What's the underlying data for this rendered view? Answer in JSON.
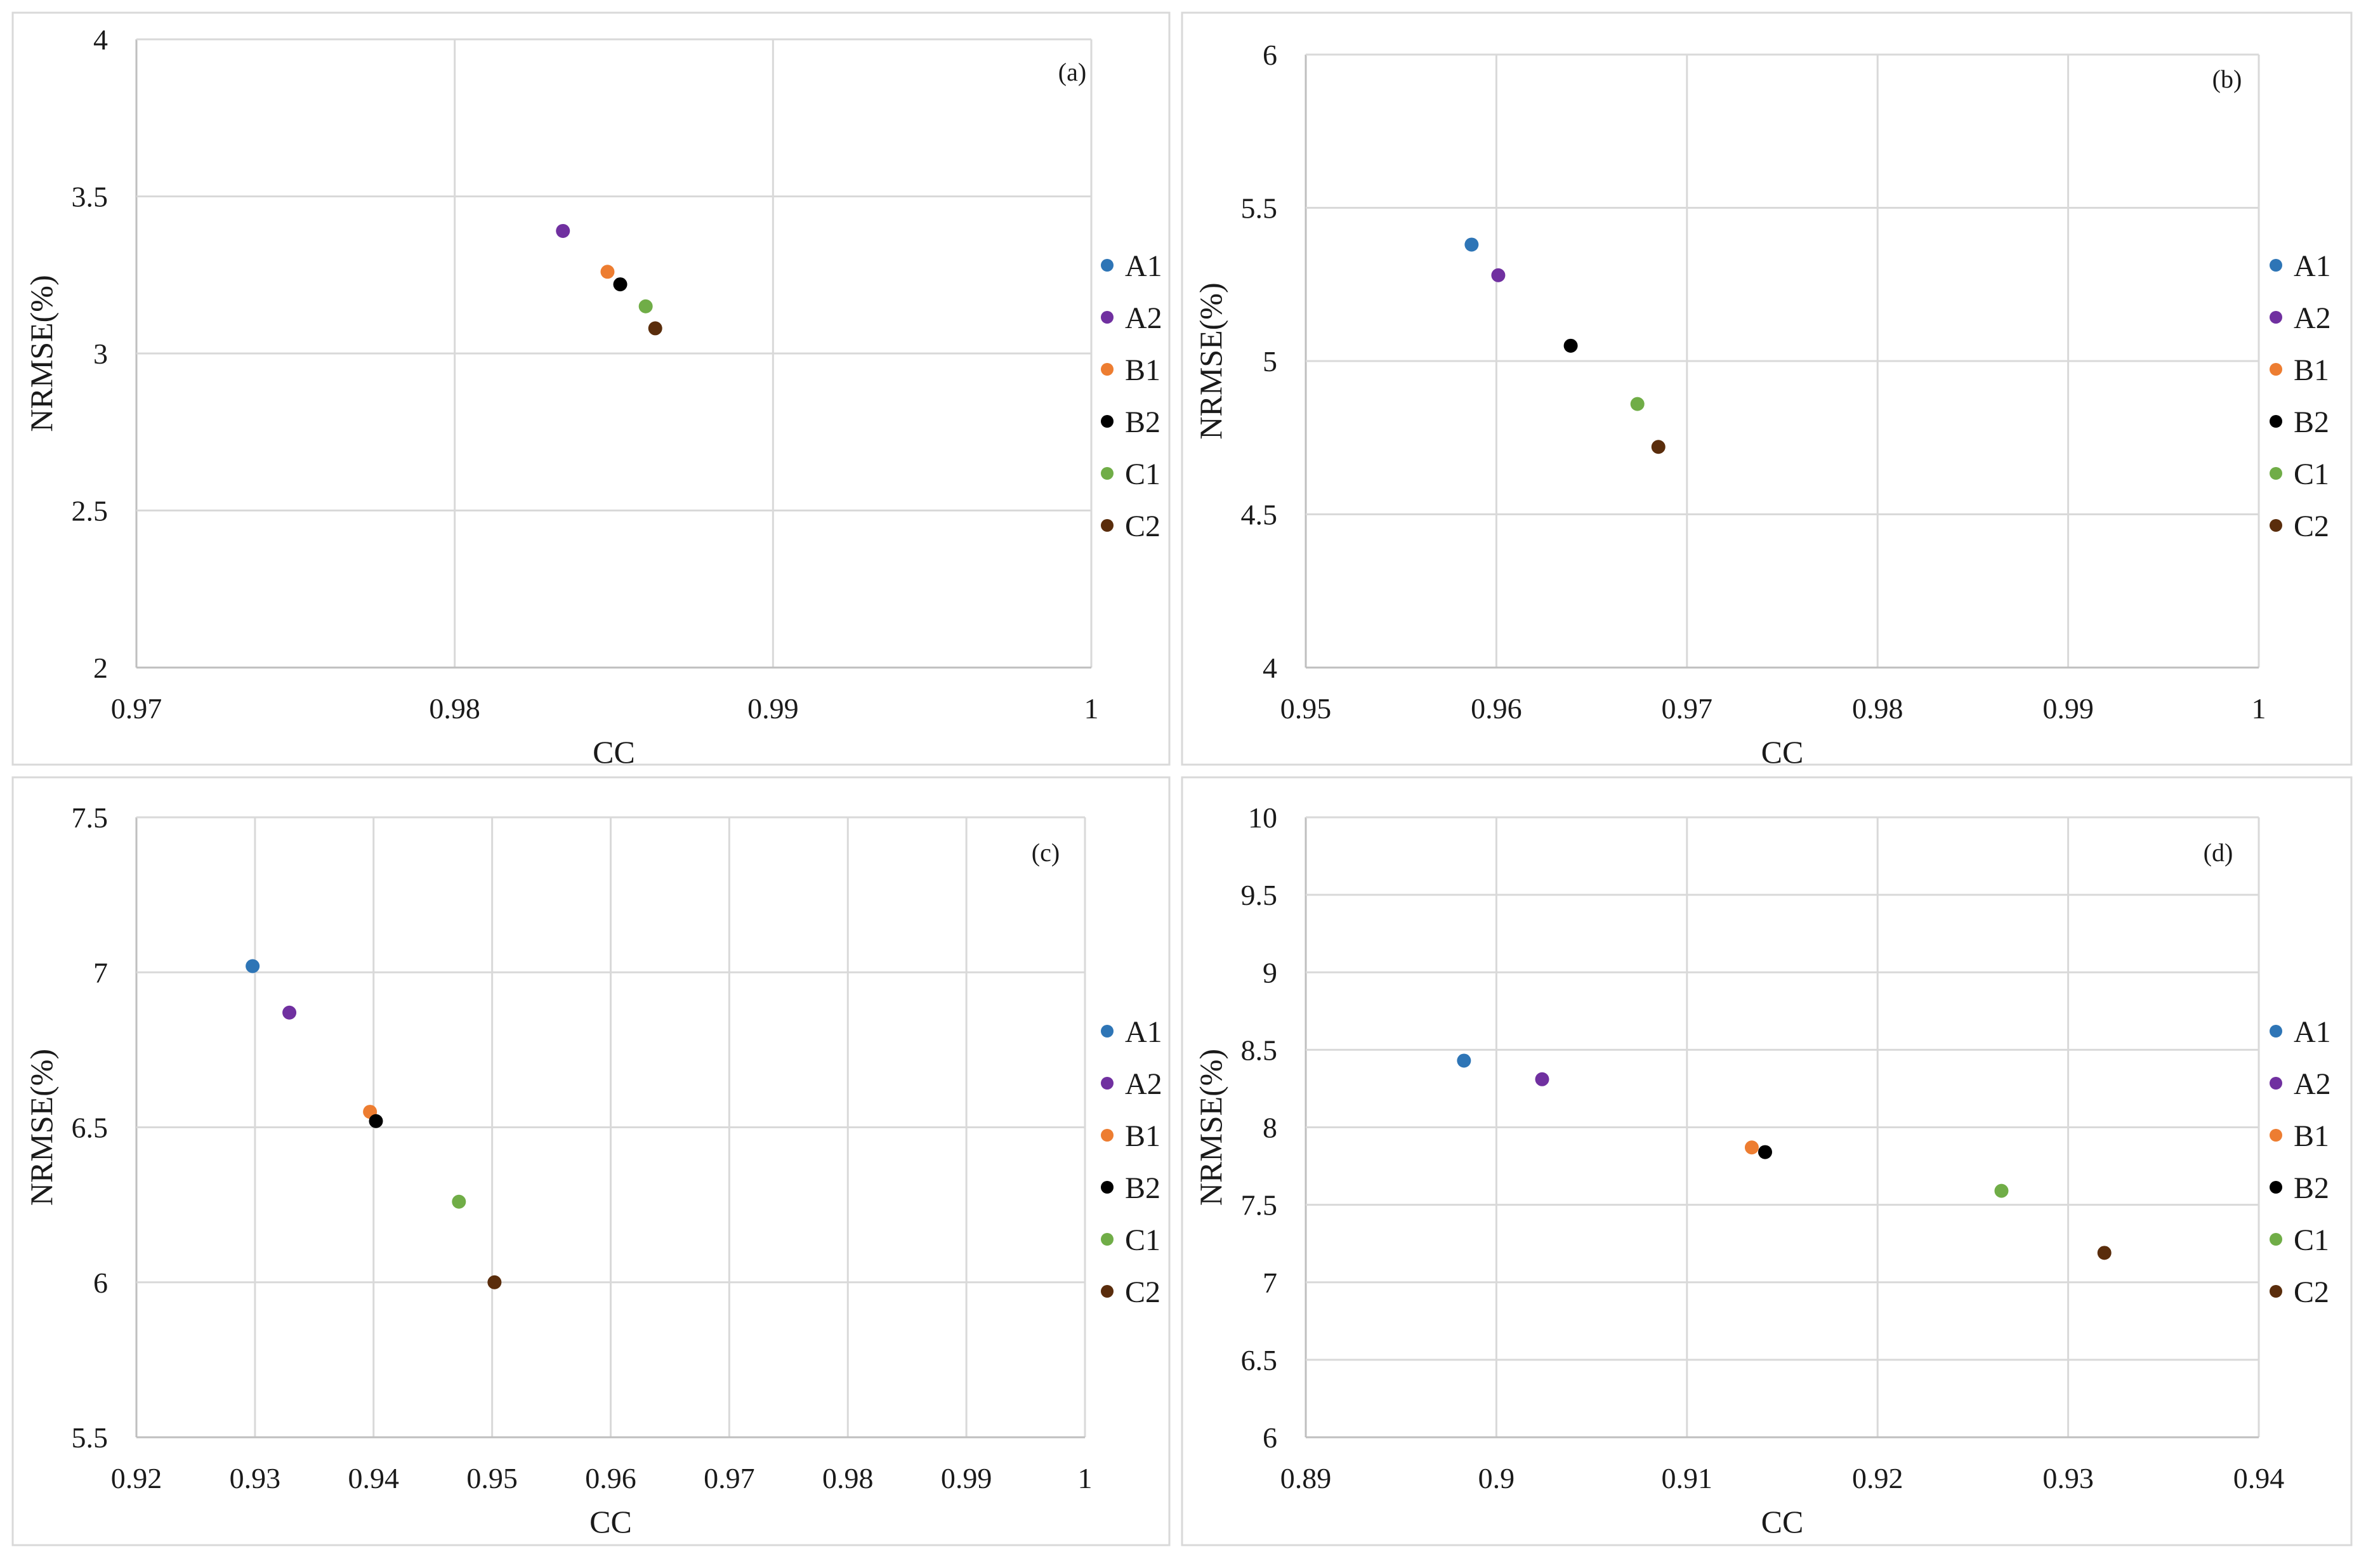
{
  "chart_data": [
    {
      "type": "scatter",
      "panel_label": "(a)",
      "xlabel": "CC",
      "ylabel": "NRMSE(%)",
      "xlim": [
        0.97,
        1
      ],
      "ylim": [
        2,
        4
      ],
      "x_ticks": [
        "0.97",
        "0.98",
        "0.99",
        "1"
      ],
      "y_ticks": [
        "2",
        "2.5",
        "3",
        "3.5",
        "4"
      ],
      "grid": true,
      "legend": "right",
      "series": [
        {
          "name": "A1",
          "color": "#2e75b6",
          "x": null,
          "y": null
        },
        {
          "name": "A2",
          "color": "#7030a0",
          "x": 0.9834,
          "y": 3.39
        },
        {
          "name": "B1",
          "color": "#ed7d31",
          "x": 0.9848,
          "y": 3.26
        },
        {
          "name": "B2",
          "color": "#000000",
          "x": 0.9852,
          "y": 3.22
        },
        {
          "name": "C1",
          "color": "#70ad47",
          "x": 0.986,
          "y": 3.15
        },
        {
          "name": "C2",
          "color": "#5a2d0c",
          "x": 0.9863,
          "y": 3.08
        }
      ]
    },
    {
      "type": "scatter",
      "panel_label": "(b)",
      "xlabel": "CC",
      "ylabel": "NRMSE(%)",
      "xlim": [
        0.95,
        1
      ],
      "ylim": [
        4,
        6
      ],
      "x_ticks": [
        "0.95",
        "0.96",
        "0.97",
        "0.98",
        "0.99",
        "1"
      ],
      "y_ticks": [
        "4",
        "4.5",
        "5",
        "5.5",
        "6"
      ],
      "grid": true,
      "legend": "right",
      "series": [
        {
          "name": "A1",
          "color": "#2e75b6",
          "x": 0.9587,
          "y": 5.38
        },
        {
          "name": "A2",
          "color": "#7030a0",
          "x": 0.9601,
          "y": 5.28
        },
        {
          "name": "B1",
          "color": "#ed7d31",
          "x": null,
          "y": null
        },
        {
          "name": "B2",
          "color": "#000000",
          "x": 0.9639,
          "y": 5.05
        },
        {
          "name": "C1",
          "color": "#70ad47",
          "x": 0.9674,
          "y": 4.86
        },
        {
          "name": "C2",
          "color": "#5a2d0c",
          "x": 0.9685,
          "y": 4.72
        }
      ]
    },
    {
      "type": "scatter",
      "panel_label": "(c)",
      "xlabel": "CC",
      "ylabel": "NRMSE(%)",
      "xlim": [
        0.92,
        1
      ],
      "ylim": [
        5.5,
        7.5
      ],
      "x_ticks": [
        "0.92",
        "0.93",
        "0.94",
        "0.95",
        "0.96",
        "0.97",
        "0.98",
        "0.99",
        "1"
      ],
      "y_ticks": [
        "5.5",
        "6",
        "6.5",
        "7",
        "7.5"
      ],
      "grid": true,
      "legend": "right",
      "series": [
        {
          "name": "A1",
          "color": "#2e75b6",
          "x": 0.9298,
          "y": 7.02
        },
        {
          "name": "A2",
          "color": "#7030a0",
          "x": 0.9329,
          "y": 6.87
        },
        {
          "name": "B1",
          "color": "#ed7d31",
          "x": 0.9397,
          "y": 6.55
        },
        {
          "name": "B2",
          "color": "#000000",
          "x": 0.9402,
          "y": 6.52
        },
        {
          "name": "C1",
          "color": "#70ad47",
          "x": 0.9472,
          "y": 6.26
        },
        {
          "name": "C2",
          "color": "#5a2d0c",
          "x": 0.9502,
          "y": 6.0
        }
      ]
    },
    {
      "type": "scatter",
      "panel_label": "(d)",
      "xlabel": "CC",
      "ylabel": "NRMSE(%)",
      "xlim": [
        0.89,
        0.94
      ],
      "ylim": [
        6,
        10
      ],
      "x_ticks": [
        "0.89",
        "0.9",
        "0.91",
        "0.92",
        "0.93",
        "0.94"
      ],
      "y_ticks": [
        "6",
        "6.5",
        "7",
        "7.5",
        "8",
        "8.5",
        "9",
        "9.5",
        "10"
      ],
      "grid": true,
      "legend": "right",
      "series": [
        {
          "name": "A1",
          "color": "#2e75b6",
          "x": 0.8983,
          "y": 8.43
        },
        {
          "name": "A2",
          "color": "#7030a0",
          "x": 0.9024,
          "y": 8.31
        },
        {
          "name": "B1",
          "color": "#ed7d31",
          "x": 0.9134,
          "y": 7.87
        },
        {
          "name": "B2",
          "color": "#000000",
          "x": 0.9141,
          "y": 7.84
        },
        {
          "name": "C1",
          "color": "#70ad47",
          "x": 0.9265,
          "y": 7.59
        },
        {
          "name": "C2",
          "color": "#5a2d0c",
          "x": 0.9319,
          "y": 7.19
        }
      ]
    }
  ]
}
